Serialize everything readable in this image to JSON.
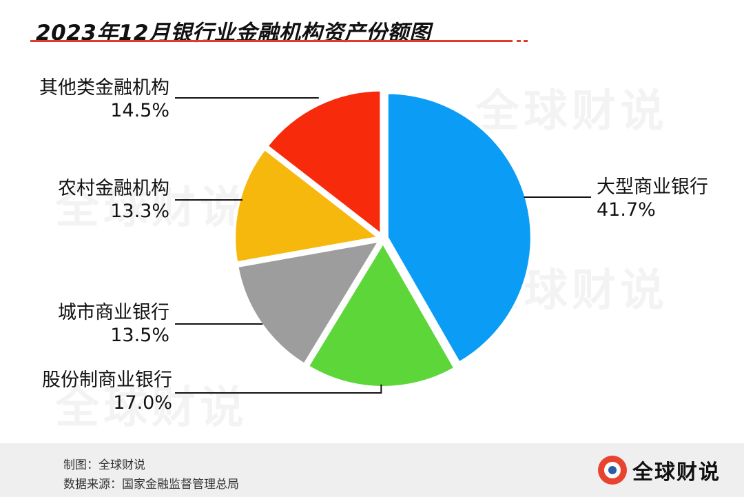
{
  "chart_data": {
    "type": "pie",
    "title": "2023年12月银行业金融机构资产份额图",
    "unit": "%",
    "slices": [
      {
        "label": "大型商业银行",
        "value": 41.7,
        "display": "41.7%",
        "color": "#0b9cf5"
      },
      {
        "label": "股份制商业银行",
        "value": 17.0,
        "display": "17.0%",
        "color": "#5dd63a"
      },
      {
        "label": "城市商业银行",
        "value": 13.5,
        "display": "13.5%",
        "color": "#9d9d9d"
      },
      {
        "label": "农村金融机构",
        "value": 13.3,
        "display": "13.3%",
        "color": "#f6b80c"
      },
      {
        "label": "其他类金融机构",
        "value": 14.5,
        "display": "14.5%",
        "color": "#f72a0c"
      }
    ],
    "start": "top",
    "direction": "clockwise"
  },
  "watermark": "全球财说",
  "footer": {
    "made_by": "制图：全球财说",
    "source": "数据来源：国家金融监督管理总局"
  },
  "brand": {
    "name": "全球财说",
    "logo_icon": "globe-logo-icon",
    "accent_color": "#e23a2c"
  }
}
